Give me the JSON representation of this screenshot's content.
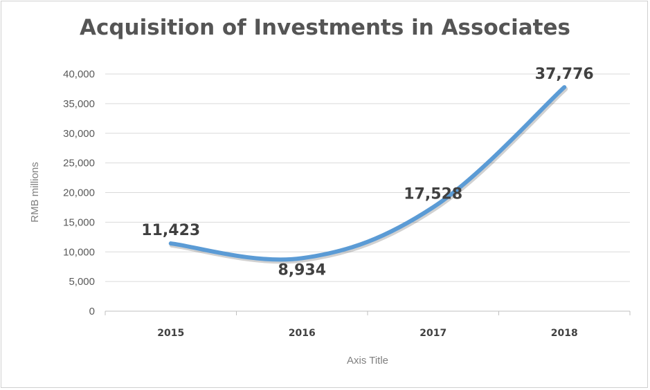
{
  "chart_data": {
    "type": "line",
    "title": "Acquisition of Investments in Associates",
    "xlabel": "Axis Title",
    "ylabel": "RMB millions",
    "categories": [
      "2015",
      "2016",
      "2017",
      "2018"
    ],
    "values": [
      11423,
      8934,
      17528,
      37776
    ],
    "data_labels": [
      "11,423",
      "8,934",
      "17,528",
      "37,776"
    ],
    "ylim": [
      0,
      40000
    ],
    "yticks": [
      0,
      5000,
      10000,
      15000,
      20000,
      25000,
      30000,
      35000,
      40000
    ],
    "ytick_labels": [
      "0",
      "5,000",
      "10,000",
      "15,000",
      "20,000",
      "25,000",
      "30,000",
      "35,000",
      "40,000"
    ],
    "grid": true,
    "legend": "none",
    "line_color": "#5B9BD5"
  }
}
